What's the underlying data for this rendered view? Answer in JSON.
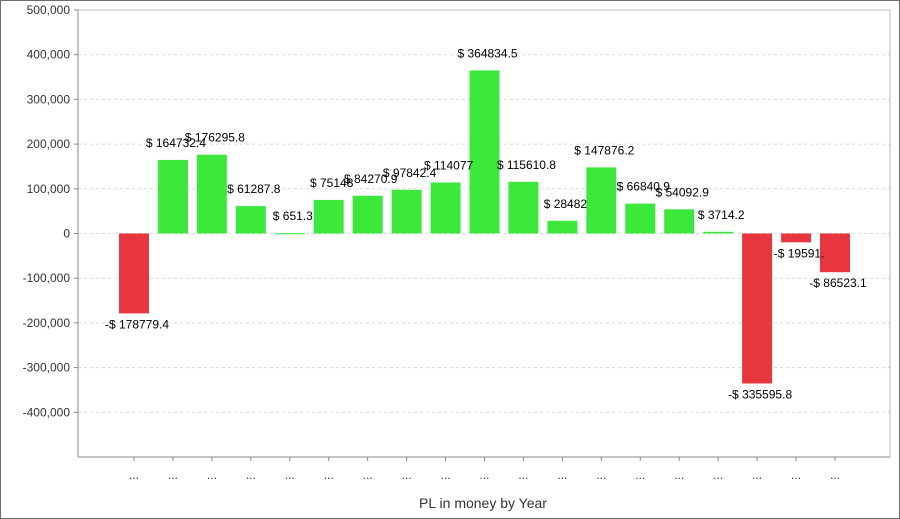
{
  "chart_data": {
    "type": "bar",
    "title": "",
    "xlabel": "PL in money by Year",
    "ylabel": "",
    "ylim": [
      -500000,
      500000
    ],
    "yticks": [
      500000,
      400000,
      300000,
      200000,
      100000,
      0,
      -100000,
      -200000,
      -300000,
      -400000
    ],
    "ytick_labels": [
      "500,000",
      "400,000",
      "300,000",
      "200,000",
      "100,000",
      "0",
      "-100,000",
      "-200,000",
      "-300,000",
      "-400,000"
    ],
    "grid": true,
    "categories": [
      "...",
      "...",
      "...",
      "...",
      "...",
      "...",
      "...",
      "...",
      "...",
      "...",
      "...",
      "...",
      "...",
      "...",
      "...",
      "...",
      "...",
      "...",
      "..."
    ],
    "values": [
      -178779.4,
      164732.4,
      176295.8,
      61287.8,
      651.3,
      75148,
      84270.9,
      97842.4,
      114077,
      364834.5,
      115610.8,
      28482,
      147876.2,
      66840.9,
      54092.9,
      3714.2,
      -335595.8,
      -19591.0,
      -86523.1
    ],
    "labels": [
      "-$ 178779.4",
      "$ 164732.4",
      "$ 176295.8",
      "$ 61287.8",
      "$ 651.3",
      "$ 75148",
      "$ 84270.9",
      "$ 97842.4",
      "$ 114077",
      "$ 364834.5",
      "$ 115610.8",
      "$ 28482",
      "$ 147876.2",
      "$ 66840.9",
      "$ 54092.9",
      "$ 3714.2",
      "-$ 335595.8",
      "-$ 19591.",
      "-$ 86523.1"
    ],
    "colors": {
      "positive": "#3de83d",
      "negative": "#e8363f",
      "grid": "#d8d8d8",
      "axis": "#888888"
    }
  }
}
